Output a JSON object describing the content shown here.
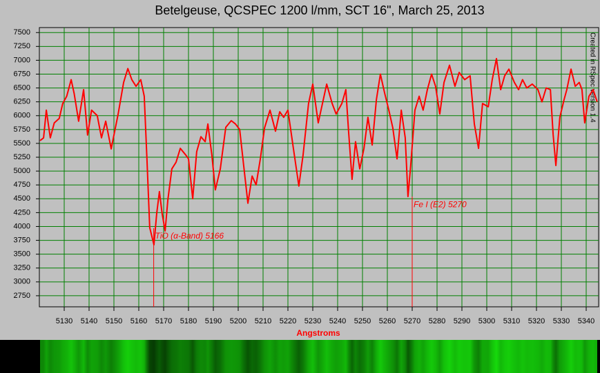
{
  "chart_data": {
    "type": "line",
    "title": "Betelgeuse, QCSPEC 1200 l/mm, SCT 16\", March 25, 2013",
    "x_label": "Angstroms",
    "side_note": "Created in RSpec version 1.4",
    "color": "#ff0000",
    "grid": true,
    "grid_color": "#008000",
    "xlim": [
      5120,
      5345
    ],
    "ylim": [
      2550,
      7590
    ],
    "xticks": [
      5130,
      5140,
      5150,
      5160,
      5170,
      5180,
      5190,
      5200,
      5210,
      5220,
      5230,
      5240,
      5250,
      5260,
      5270,
      5280,
      5290,
      5300,
      5310,
      5320,
      5330,
      5340
    ],
    "yticks": [
      2750,
      3000,
      3250,
      3500,
      3750,
      4000,
      4250,
      4500,
      4750,
      5000,
      5250,
      5500,
      5750,
      6000,
      6250,
      6500,
      6750,
      7000,
      7250,
      7500
    ],
    "x": [
      5120.3,
      5121.7,
      5122.8,
      5124.4,
      5126,
      5128,
      5129.4,
      5131,
      5132.8,
      5134,
      5135.8,
      5137.8,
      5139.4,
      5141,
      5143.3,
      5145,
      5146.7,
      5148.9,
      5151.7,
      5153.9,
      5155.6,
      5157.2,
      5158.9,
      5160.8,
      5162.2,
      5163.3,
      5164.4,
      5166.1,
      5167.2,
      5168.3,
      5169.4,
      5170.6,
      5171.7,
      5173.3,
      5175,
      5176.7,
      5178.9,
      5180,
      5181.7,
      5183.3,
      5185,
      5186.7,
      5187.8,
      5189.4,
      5190.8,
      5192.8,
      5195,
      5197.2,
      5198.9,
      5200.6,
      5202.2,
      5203.9,
      5205.6,
      5207.2,
      5208.9,
      5210.6,
      5212.8,
      5215,
      5216.7,
      5218.3,
      5220,
      5222.2,
      5224.4,
      5226.1,
      5228.3,
      5230,
      5232.2,
      5233.9,
      5235.6,
      5237.8,
      5239.4,
      5241.7,
      5243.3,
      5244.4,
      5245.8,
      5247.2,
      5248.9,
      5250.6,
      5252.2,
      5253.9,
      5255.6,
      5257.2,
      5258.9,
      5260.6,
      5262.2,
      5263.9,
      5265.6,
      5267.2,
      5268.3,
      5269.4,
      5271.1,
      5272.8,
      5274.4,
      5276.1,
      5277.8,
      5279.4,
      5281.1,
      5282.8,
      5285,
      5287.2,
      5288.9,
      5291.1,
      5293.3,
      5295,
      5296.7,
      5298.3,
      5300.6,
      5302.2,
      5303.9,
      5305.6,
      5307.2,
      5308.9,
      5311.1,
      5312.8,
      5314.4,
      5316.1,
      5318.3,
      5320.6,
      5322.2,
      5323.9,
      5325.6,
      5326.7,
      5327.8,
      5329.4,
      5331.1,
      5332.2,
      5333.9,
      5335.6,
      5337.2,
      5338.3,
      5339.4,
      5341.1,
      5342.8,
      5344.4
    ],
    "values": [
      5550,
      5600,
      6100,
      5600,
      5870,
      5950,
      6220,
      6350,
      6650,
      6400,
      5900,
      6470,
      5650,
      6100,
      6000,
      5600,
      5900,
      5400,
      6030,
      6600,
      6850,
      6650,
      6530,
      6650,
      6350,
      5200,
      3980,
      3670,
      4230,
      4630,
      4230,
      3920,
      4480,
      5040,
      5160,
      5410,
      5290,
      5220,
      4500,
      5350,
      5620,
      5530,
      5850,
      5290,
      4660,
      5040,
      5790,
      5910,
      5850,
      5750,
      5100,
      4420,
      4910,
      4750,
      5220,
      5780,
      6100,
      5720,
      6070,
      5970,
      6100,
      5410,
      4730,
      5290,
      6220,
      6570,
      5870,
      6220,
      6570,
      6220,
      6030,
      6220,
      6470,
      5720,
      4850,
      5530,
      5040,
      5410,
      5970,
      5470,
      6290,
      6750,
      6410,
      6100,
      5780,
      5220,
      6100,
      5600,
      4540,
      5100,
      6100,
      6350,
      6100,
      6470,
      6750,
      6530,
      6030,
      6600,
      6910,
      6530,
      6780,
      6650,
      6720,
      5850,
      5410,
      6220,
      6160,
      6650,
      7030,
      6470,
      6720,
      6840,
      6600,
      6470,
      6650,
      6500,
      6570,
      6470,
      6250,
      6500,
      6470,
      5660,
      5100,
      5970,
      6290,
      6470,
      6840,
      6530,
      6600,
      6470,
      5870,
      6350,
      6470,
      6250
    ],
    "annotations": [
      {
        "text": "TiO (α-Band) 5166",
        "x": 5166,
        "y": 3970
      },
      {
        "text": "Fe I (E2) 5270",
        "x": 5270,
        "y": 4540
      }
    ]
  }
}
